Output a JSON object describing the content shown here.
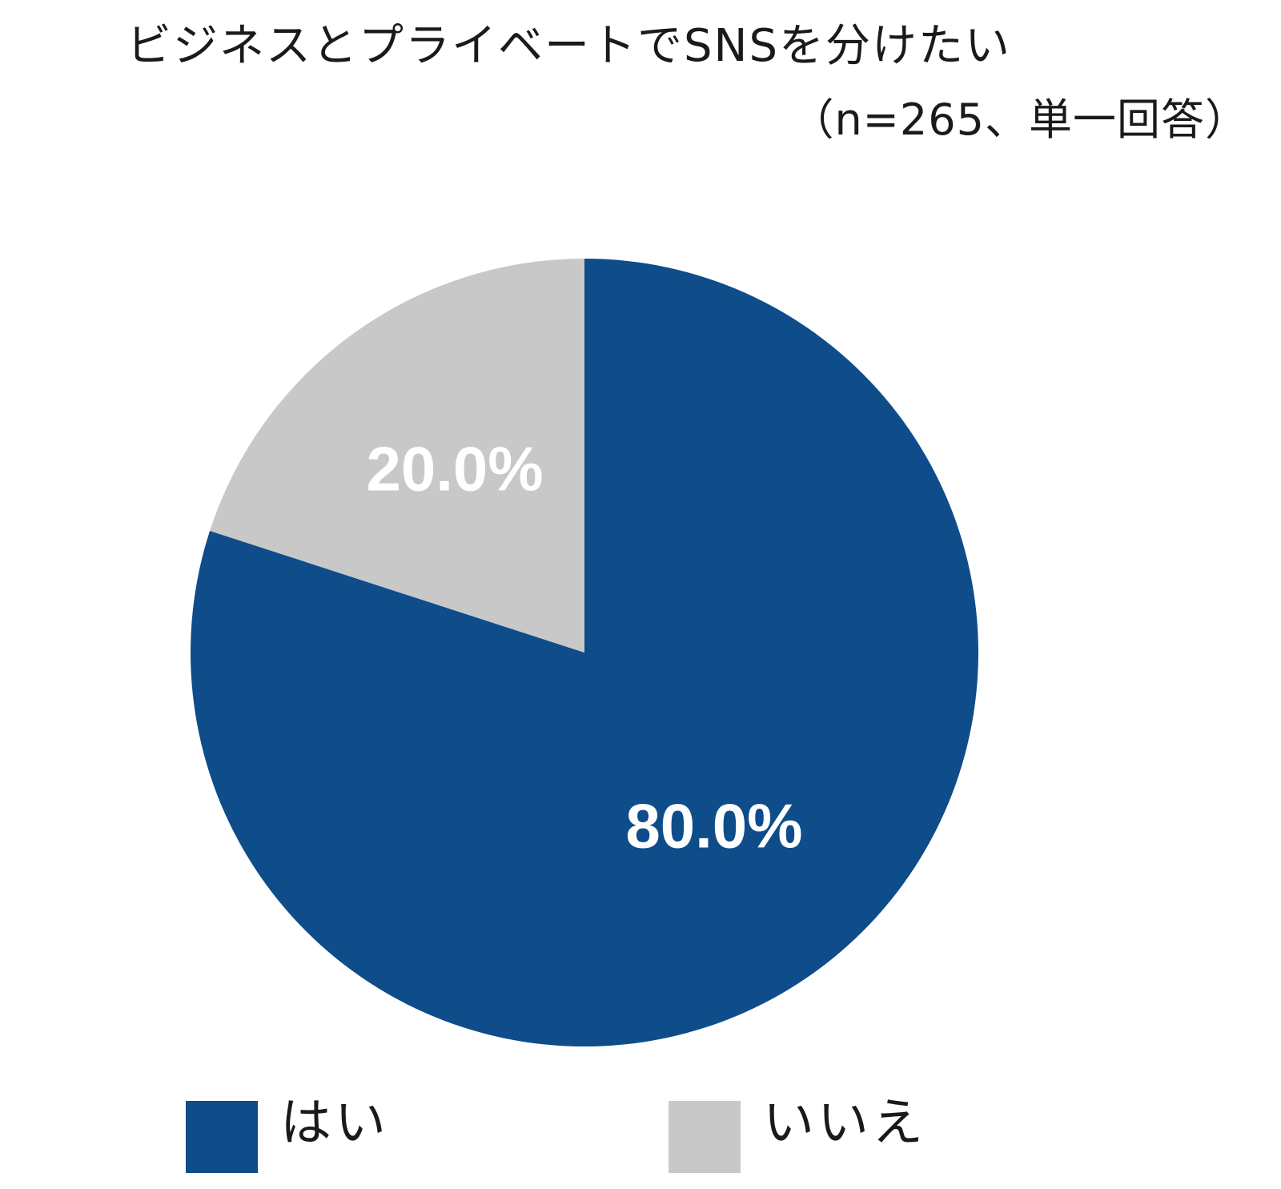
{
  "chart_data": {
    "type": "pie",
    "title": "ビジネスとプライベートでSNSを分けたい",
    "subtitle": "（n=265、単一回答）",
    "slices": [
      {
        "name": "はい",
        "value": 80.0,
        "label": "80.0%",
        "color": "#0e4c8a"
      },
      {
        "name": "いいえ",
        "value": 20.0,
        "label": "20.0%",
        "color": "#c8c8c8"
      }
    ],
    "start_angle": "12 o'clock",
    "direction": "clockwise",
    "legend": {
      "placement": "bottom",
      "entries": [
        {
          "label": "はい",
          "color": "#0e4c8a"
        },
        {
          "label": "いいえ",
          "color": "#c8c8c8"
        }
      ]
    }
  }
}
